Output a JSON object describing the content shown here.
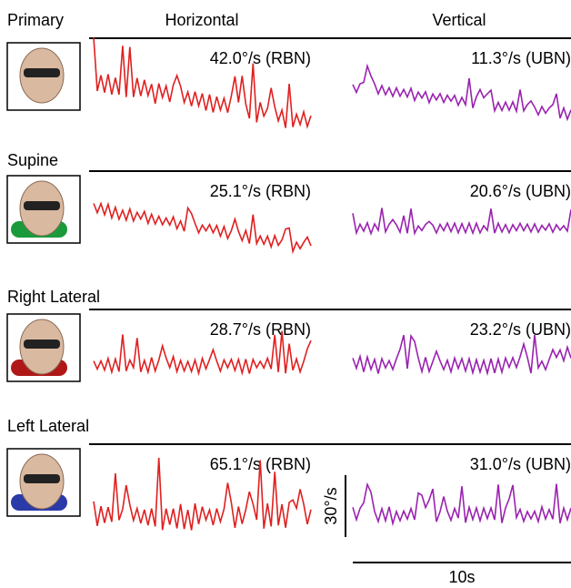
{
  "header": {
    "horizontal": "Horizontal",
    "vertical": "Vertical"
  },
  "rows": [
    {
      "label": "Primary",
      "horizontal": "42.0°/s (RBN)",
      "vertical": "11.3°/s (UBN)"
    },
    {
      "label": "Supine",
      "horizontal": "25.1°/s (RBN)",
      "vertical": "20.6°/s (UBN)"
    },
    {
      "label": "Right Lateral",
      "horizontal": "28.7°/s (RBN)",
      "vertical": "23.2°/s (UBN)"
    },
    {
      "label": "Left Lateral",
      "horizontal": "65.1°/s (RBN)",
      "vertical": "31.0°/s (UBN)"
    }
  ],
  "scale_bar": {
    "vertical": "30°/s",
    "horizontal": "10s"
  }
}
